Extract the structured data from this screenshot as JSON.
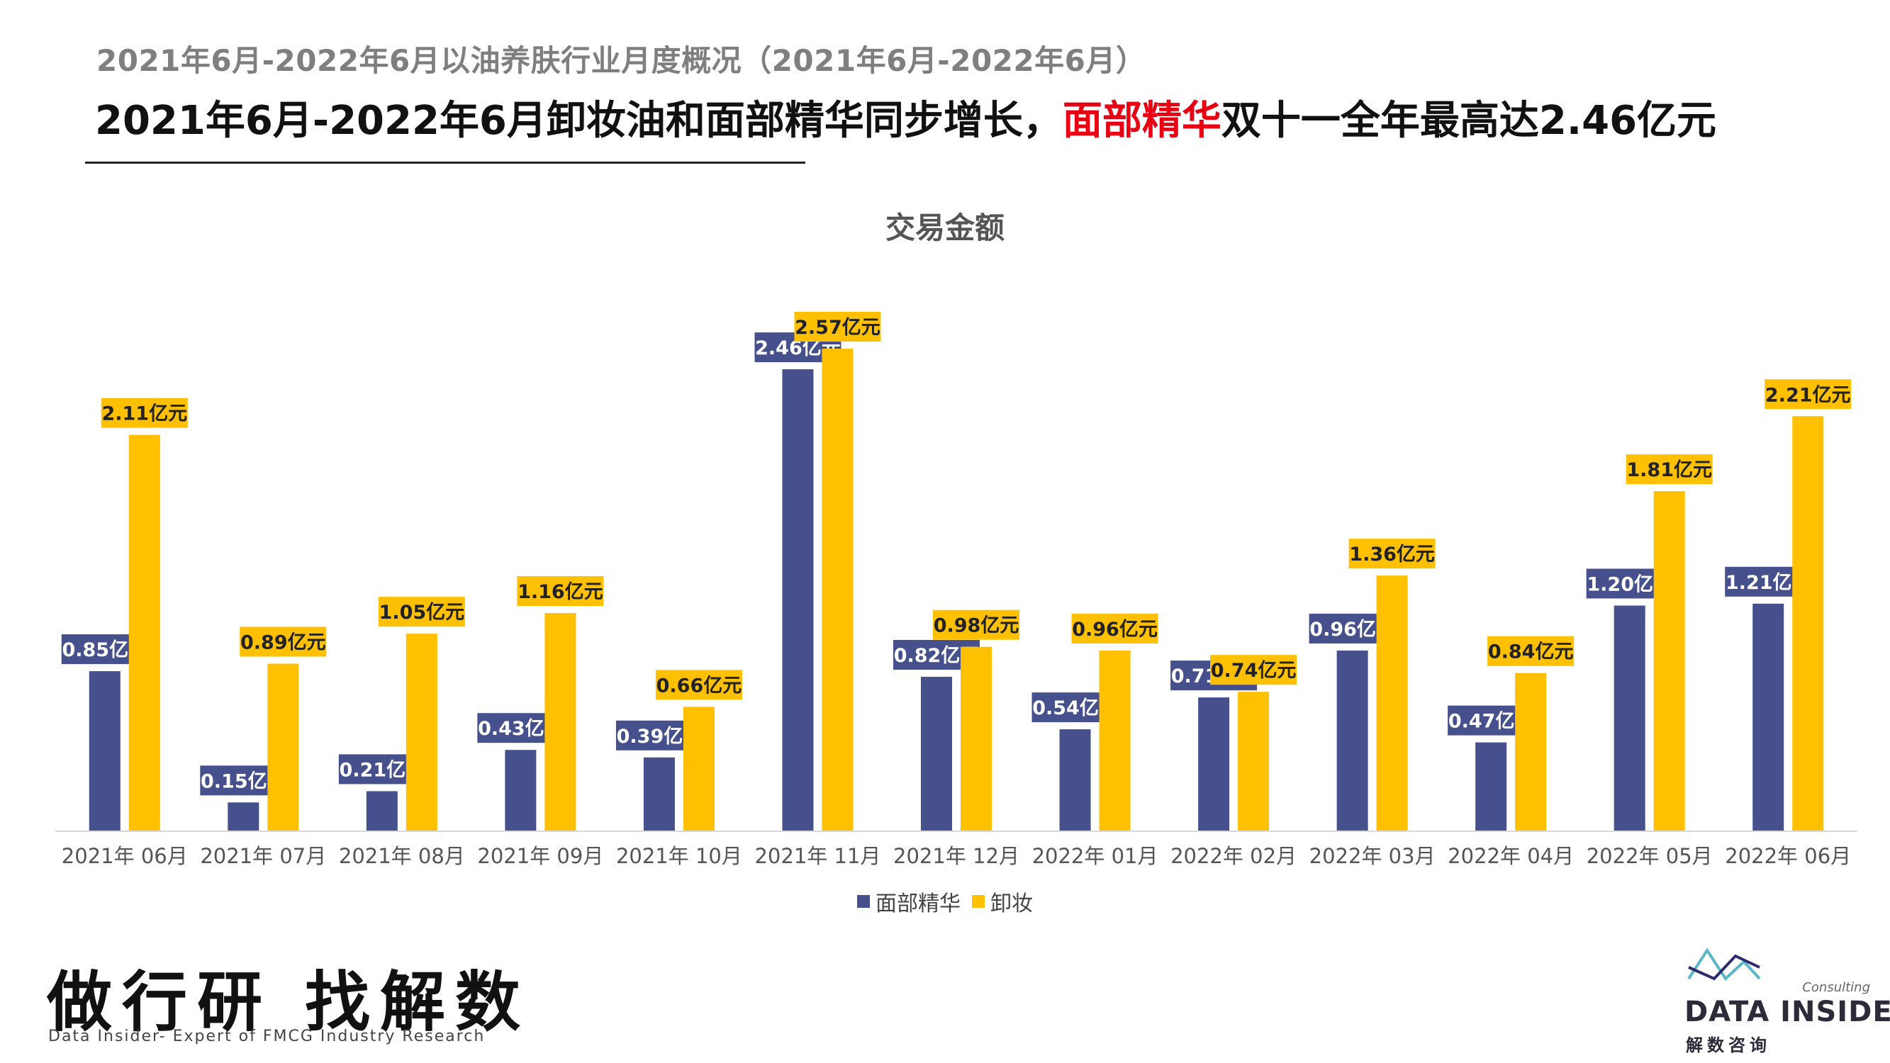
{
  "header": {
    "subtitle": "2021年6月-2022年6月以油养肤行业月度概况（2021年6月-2022年6月）",
    "headline_part1": "2021年6月-2022年6月卸妆油和面部精华同步增长，",
    "headline_highlight": "面部精华",
    "headline_part2": "双十一全年最高达2.46亿元"
  },
  "colors": {
    "series1": "#46508c",
    "series2": "#ffc000",
    "highlight": "#e60012"
  },
  "chart_data": {
    "type": "bar",
    "title": "交易金额",
    "categories": [
      "2021年 06月",
      "2021年 07月",
      "2021年 08月",
      "2021年 09月",
      "2021年 10月",
      "2021年 11月",
      "2021年 12月",
      "2022年 01月",
      "2022年 02月",
      "2022年 03月",
      "2022年 04月",
      "2022年 05月",
      "2022年 06月"
    ],
    "series": [
      {
        "name": "面部精华",
        "values": [
          0.85,
          0.15,
          0.21,
          0.43,
          0.39,
          2.46,
          0.82,
          0.54,
          0.71,
          0.96,
          0.47,
          1.2,
          1.21
        ],
        "labels": [
          "0.85亿元",
          "0.15亿元",
          "0.21亿元",
          "0.43亿元",
          "0.39亿元",
          "2.46亿元",
          "0.82亿元",
          "0.54亿元",
          "0.71亿元",
          "0.96亿元",
          "0.47亿元",
          "1.20亿元",
          "1.21亿元"
        ]
      },
      {
        "name": "卸妆",
        "values": [
          2.11,
          0.89,
          1.05,
          1.16,
          0.66,
          2.57,
          0.98,
          0.96,
          0.74,
          1.36,
          0.84,
          1.81,
          2.21
        ],
        "labels": [
          "2.11亿元",
          "0.89亿元",
          "1.05亿元",
          "1.16亿元",
          "0.66亿元",
          "2.57亿元",
          "0.98亿元",
          "0.96亿元",
          "0.74亿元",
          "1.36亿元",
          "0.84亿元",
          "1.81亿元",
          "2.21亿元"
        ]
      }
    ],
    "unit": "亿元",
    "legend": "bottom",
    "grid": false
  },
  "footer": {
    "brand_cn": "做行研 找解数",
    "brand_en": "Data Insider- Expert of FMCG Industry Research",
    "logo_name": "DATA INSIDER",
    "logo_consulting": "Consulting",
    "logo_cn": "解数咨询"
  }
}
